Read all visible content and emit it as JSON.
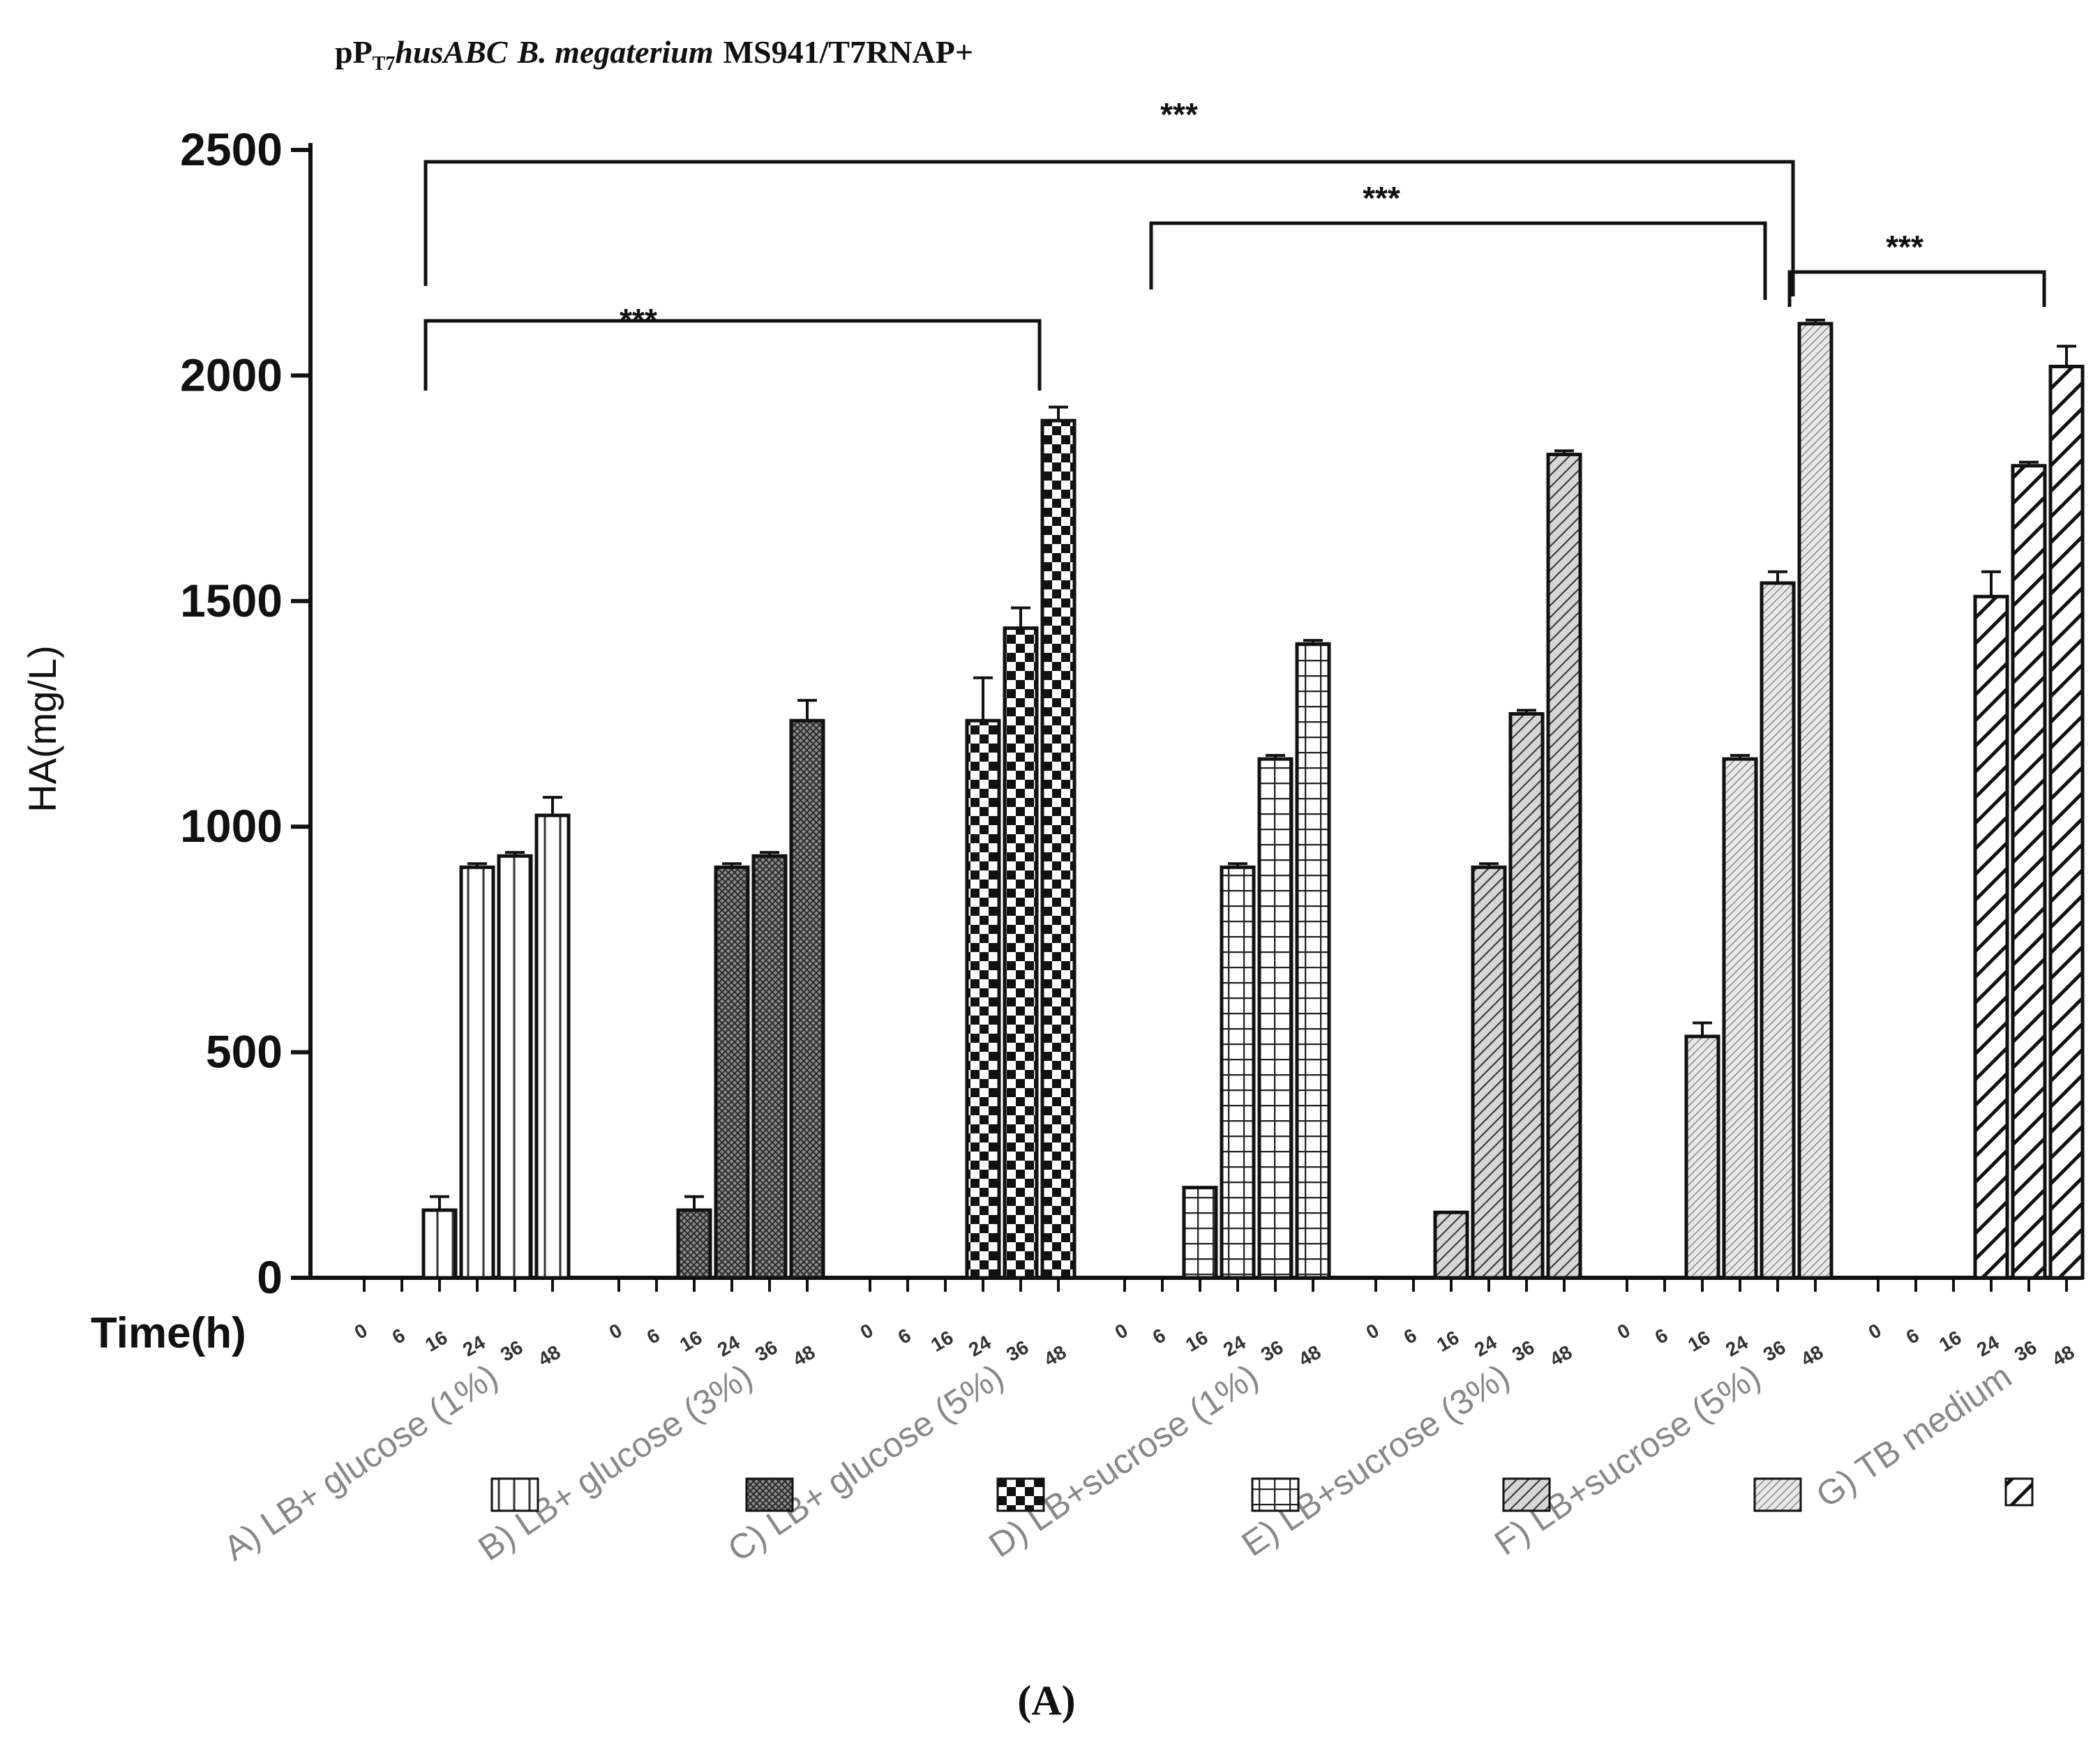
{
  "chart_data": {
    "type": "bar",
    "title": {
      "prefix": "pP",
      "subscript": "T7",
      "gene": "husABC",
      "species": "B. megaterium",
      "strain": "MS941/T7RNAP+"
    },
    "xlabel": "Time(h)",
    "ylabel": "HA(mg/L)",
    "ylim": [
      0,
      2500
    ],
    "yticks": [
      0,
      500,
      1000,
      1500,
      2000,
      2500
    ],
    "time_points": [
      "0",
      "6",
      "16",
      "24",
      "36",
      "48"
    ],
    "groups": [
      {
        "name": "A) LB+ glucose (1%)",
        "pattern": "vlines",
        "values": [
          0,
          0,
          150,
          910,
          935,
          1025
        ],
        "errors": [
          0,
          0,
          30,
          8,
          8,
          40
        ]
      },
      {
        "name": "B) LB+ glucose (3%)",
        "pattern": "darkmesh",
        "values": [
          0,
          0,
          150,
          910,
          935,
          1235
        ],
        "errors": [
          0,
          0,
          30,
          8,
          8,
          45
        ]
      },
      {
        "name": "C) LB+ glucose (5%)",
        "pattern": "checker",
        "values": [
          0,
          0,
          0,
          1235,
          1440,
          1900
        ],
        "errors": [
          0,
          0,
          0,
          95,
          45,
          30
        ]
      },
      {
        "name": "D) LB+sucrose (1%)",
        "pattern": "grid",
        "values": [
          0,
          0,
          200,
          910,
          1150,
          1405
        ],
        "errors": [
          0,
          0,
          0,
          8,
          8,
          8
        ]
      },
      {
        "name": "E) LB+sucrose (3%)",
        "pattern": "hatch",
        "values": [
          0,
          0,
          145,
          910,
          1250,
          1825
        ],
        "errors": [
          0,
          0,
          0,
          8,
          8,
          8
        ]
      },
      {
        "name": "F) LB+sucrose (5%)",
        "pattern": "finehatch",
        "values": [
          0,
          0,
          535,
          1150,
          1540,
          2115
        ],
        "errors": [
          0,
          0,
          30,
          8,
          25,
          8
        ]
      },
      {
        "name": "G) TB medium",
        "pattern": "widehatch",
        "values": [
          0,
          0,
          0,
          1510,
          1800,
          2020
        ],
        "errors": [
          0,
          0,
          0,
          55,
          8,
          45
        ]
      }
    ],
    "annotations": [
      {
        "label": "***",
        "from_group": 0,
        "to_group": 2
      },
      {
        "label": "***",
        "from_group": 0,
        "to_group": 5
      },
      {
        "label": "***",
        "from_group": 3,
        "to_group": 5
      },
      {
        "label": "***",
        "from_group": 5,
        "to_group": 6
      }
    ],
    "panel_label": "(A)"
  }
}
